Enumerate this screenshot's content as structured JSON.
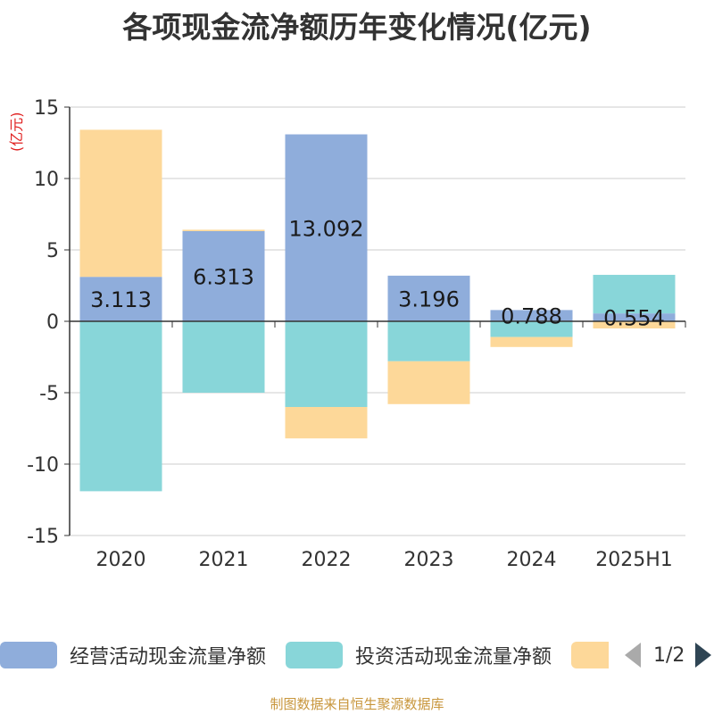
{
  "title": "各项现金流净额历年变化情况(亿元)",
  "unit_label": "(亿元)",
  "source_note": "制图数据来自恒生聚源数据库",
  "legend": {
    "items": [
      {
        "label": "经营活动现金流量净额",
        "color": "#8faddb"
      },
      {
        "label": "投资活动现金流量净额",
        "color": "#88d6d9"
      },
      {
        "label": "",
        "color": "#fdd899"
      }
    ],
    "page": "1/2"
  },
  "chart_data": {
    "type": "bar",
    "stacked": true,
    "categories": [
      "2020",
      "2021",
      "2022",
      "2023",
      "2024",
      "2025H1"
    ],
    "ylim": [
      -15,
      15
    ],
    "yticks": [
      15,
      10,
      5,
      0,
      -5,
      -10,
      -15
    ],
    "grid": true,
    "legend_position": "bottom",
    "series": [
      {
        "name": "经营活动现金流量净额",
        "color": "#8faddb",
        "values": [
          3.113,
          6.313,
          13.092,
          3.196,
          0.788,
          0.554
        ],
        "labels": [
          "3.113",
          "6.313",
          "13.092",
          "3.196",
          "0.788",
          "0.554"
        ]
      },
      {
        "name": "投资活动现金流量净额",
        "color": "#88d6d9",
        "values": [
          -11.9,
          -5.0,
          -6.0,
          -2.8,
          -1.1,
          2.7
        ]
      },
      {
        "color": "#fdd899",
        "values": [
          10.3,
          0.1,
          -2.2,
          -3.0,
          -0.7,
          -0.5
        ]
      }
    ]
  }
}
